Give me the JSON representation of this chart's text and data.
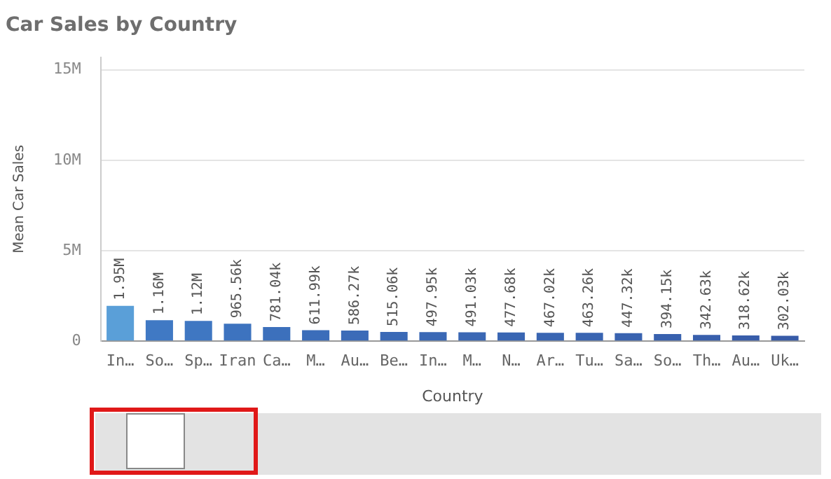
{
  "chart_data": {
    "type": "bar",
    "title": "Car Sales by Country",
    "xlabel": "Country",
    "ylabel": "Mean Car Sales",
    "categories": [
      "In…",
      "So…",
      "Sp…",
      "Iran",
      "Ca…",
      "M…",
      "Au…",
      "Be…",
      "In…",
      "M…",
      "N…",
      "Ar…",
      "Tu…",
      "Sa…",
      "So…",
      "Th…",
      "Au…",
      "Uk…"
    ],
    "values": [
      1950000,
      1160000,
      1120000,
      965560,
      781040,
      611990,
      586270,
      515060,
      497950,
      491030,
      477680,
      467020,
      463260,
      447320,
      394150,
      342630,
      318620,
      302030
    ],
    "value_labels": [
      "1.95M",
      "1.16M",
      "1.12M",
      "965.56k",
      "781.04k",
      "611.99k",
      "586.27k",
      "515.06k",
      "497.95k",
      "491.03k",
      "477.68k",
      "467.02k",
      "463.26k",
      "447.32k",
      "394.15k",
      "342.63k",
      "318.62k",
      "302.03k"
    ],
    "colors": [
      "#5a9fd8",
      "#4079c4",
      "#3f77c2",
      "#3d73bf",
      "#3c70bc",
      "#3b6dba",
      "#3b6bb8",
      "#3a69b6",
      "#3a68b5",
      "#3a67b4",
      "#3966b3",
      "#3965b2",
      "#3964b1",
      "#3963b0",
      "#3861ae",
      "#385fac",
      "#385daa",
      "#375ba8"
    ],
    "ylim": [
      0,
      15700000
    ],
    "yticks": [
      {
        "value": 0,
        "label": "0"
      },
      {
        "value": 5000000,
        "label": "5M"
      },
      {
        "value": 10000000,
        "label": "10M"
      },
      {
        "value": 15000000,
        "label": "15M"
      }
    ],
    "grid": "y",
    "legend": false
  }
}
